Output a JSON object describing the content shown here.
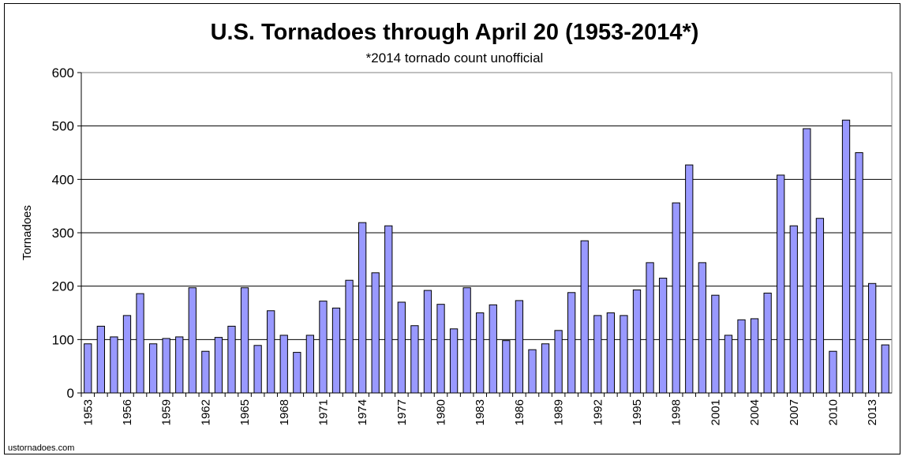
{
  "chart_data": {
    "type": "bar",
    "title": "U.S. Tornadoes through April 20 (1953-2014*)",
    "subtitle": "*2014 tornado count unofficial",
    "xlabel": "",
    "ylabel": "Tornadoes",
    "ylim": [
      0,
      600
    ],
    "yticks": [
      "0",
      "100",
      "200",
      "300",
      "400",
      "500",
      "600"
    ],
    "grid": true,
    "legend": "none",
    "categories": [
      "1953",
      "1954",
      "1955",
      "1956",
      "1957",
      "1958",
      "1959",
      "1960",
      "1961",
      "1962",
      "1963",
      "1964",
      "1965",
      "1966",
      "1967",
      "1968",
      "1969",
      "1970",
      "1971",
      "1972",
      "1973",
      "1974",
      "1975",
      "1976",
      "1977",
      "1978",
      "1979",
      "1980",
      "1981",
      "1982",
      "1983",
      "1984",
      "1985",
      "1986",
      "1987",
      "1988",
      "1989",
      "1990",
      "1991",
      "1992",
      "1993",
      "1994",
      "1995",
      "1996",
      "1997",
      "1998",
      "1999",
      "2000",
      "2001",
      "2002",
      "2003",
      "2004",
      "2005",
      "2006",
      "2007",
      "2008",
      "2009",
      "2010",
      "2011",
      "2012",
      "2013",
      "2014"
    ],
    "x_tick_labels": [
      "1953",
      "1956",
      "1959",
      "1962",
      "1965",
      "1968",
      "1971",
      "1974",
      "1977",
      "1980",
      "1983",
      "1986",
      "1989",
      "1992",
      "1995",
      "1998",
      "2001",
      "2004",
      "2007",
      "2010",
      "2013"
    ],
    "values": [
      92,
      125,
      105,
      145,
      186,
      92,
      102,
      105,
      197,
      78,
      104,
      125,
      197,
      89,
      154,
      108,
      76,
      108,
      172,
      159,
      211,
      319,
      225,
      313,
      170,
      126,
      192,
      166,
      120,
      197,
      150,
      165,
      98,
      173,
      81,
      92,
      117,
      188,
      285,
      145,
      150,
      145,
      193,
      244,
      215,
      356,
      427,
      244,
      183,
      108,
      137,
      139,
      187,
      408,
      313,
      495,
      327,
      78,
      511,
      450,
      205,
      90
    ],
    "bar_color": "#9999ff",
    "bar_stroke": "#000000",
    "watermark": "ustornadoes.com"
  }
}
